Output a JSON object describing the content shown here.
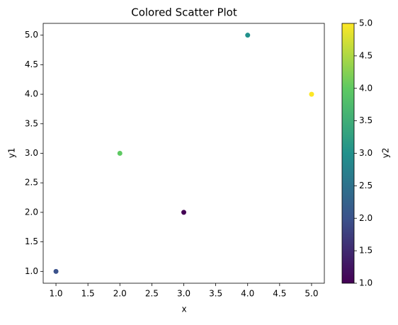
{
  "chart_data": {
    "type": "scatter",
    "title": "Colored Scatter Plot",
    "x_label": "x",
    "y_label": "y1",
    "colorbar_label": "y2",
    "x": [
      1,
      2,
      3,
      4,
      5
    ],
    "y": [
      1,
      3,
      2,
      5,
      4
    ],
    "c": [
      2,
      4,
      1,
      3,
      5
    ],
    "colormap": [
      "#440154",
      "#3b528b",
      "#21918c",
      "#5ec962",
      "#fde725"
    ],
    "xlim": [
      0.8,
      5.2
    ],
    "ylim": [
      0.8,
      5.2
    ],
    "clim": [
      1,
      5
    ],
    "xticks": [
      {
        "value": 1,
        "label": "1.0"
      },
      1.5,
      {
        "value": 2,
        "label": "2.0"
      },
      2.5,
      {
        "value": 3,
        "label": "3.0"
      },
      3.5,
      {
        "value": 4,
        "label": "4.0"
      },
      4.5,
      {
        "value": 5,
        "label": "5.0"
      }
    ],
    "yticks": [
      {
        "value": 1,
        "label": "1.0"
      },
      1.5,
      {
        "value": 2,
        "label": "2.0"
      },
      2.5,
      {
        "value": 3,
        "label": "3.0"
      },
      3.5,
      {
        "value": 4,
        "label": "4.0"
      },
      4.5,
      {
        "value": 5,
        "label": "5.0"
      }
    ],
    "cticks": [
      {
        "value": 1,
        "label": "1.0"
      },
      1.5,
      {
        "value": 2,
        "label": "2.0"
      },
      2.5,
      {
        "value": 3,
        "label": "3.0"
      },
      3.5,
      {
        "value": 4,
        "label": "4.0"
      },
      4.5,
      {
        "value": 5,
        "label": "5.0"
      }
    ],
    "grid": false
  }
}
